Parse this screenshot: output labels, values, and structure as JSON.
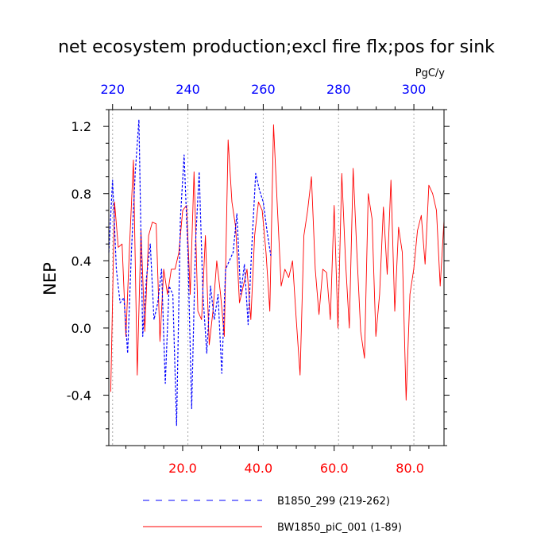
{
  "chart_data": {
    "type": "line",
    "title": "net ecosystem production;excl fire flx;pos for sink",
    "units": "PgC/y",
    "ylabel": "NEP",
    "xlabel": "",
    "ylim": [
      -0.7,
      1.3
    ],
    "bottom_axis": {
      "range": [
        0.5,
        89
      ],
      "ticks": [
        20,
        40,
        60,
        80
      ],
      "tick_labels": [
        "20.0",
        "40.0",
        "60.0",
        "80.0"
      ],
      "color": "#ff0000"
    },
    "top_axis": {
      "range": [
        219,
        308
      ],
      "ticks": [
        220,
        240,
        260,
        280,
        300
      ],
      "tick_labels": [
        "220",
        "240",
        "260",
        "280",
        "300"
      ],
      "color": "#0000ff"
    },
    "y_axis": {
      "ticks": [
        -0.4,
        0.0,
        0.4,
        0.8,
        1.2
      ],
      "tick_labels": [
        "-0.4",
        "0.0",
        "0.4",
        "0.8",
        "1.2"
      ]
    },
    "grid": "vertical dotted at top-axis ticks",
    "legend_placement": "bottom",
    "series": [
      {
        "name": "B1850_299 (219-262)",
        "axis": "top",
        "color": "#0000ff",
        "dash": "dashed",
        "x": [
          219,
          220,
          221,
          222,
          223,
          224,
          225,
          226,
          227,
          228,
          229,
          230,
          231,
          232,
          233,
          234,
          235,
          236,
          237,
          238,
          239,
          240,
          241,
          242,
          243,
          244,
          245,
          246,
          247,
          248,
          249,
          250,
          251,
          252,
          253,
          254,
          255,
          256,
          257,
          258,
          259,
          260,
          261,
          262
        ],
        "values": [
          0.45,
          0.88,
          0.35,
          0.15,
          0.18,
          -0.15,
          0.45,
          0.92,
          1.24,
          -0.05,
          0.3,
          0.5,
          0.05,
          0.15,
          0.35,
          -0.33,
          0.25,
          0.2,
          -0.58,
          0.65,
          1.03,
          0.45,
          -0.48,
          0.5,
          0.93,
          0.2,
          -0.15,
          0.25,
          0.05,
          0.2,
          -0.27,
          0.35,
          0.4,
          0.45,
          0.68,
          0.2,
          0.38,
          0.02,
          0.5,
          0.92,
          0.82,
          0.75,
          0.58,
          0.43
        ]
      },
      {
        "name": "BW1850_piC_001 (1-89)",
        "axis": "bottom",
        "color": "#ff0000",
        "dash": "solid",
        "x": [
          1,
          2,
          3,
          4,
          5,
          6,
          7,
          8,
          9,
          10,
          11,
          12,
          13,
          14,
          15,
          16,
          17,
          18,
          19,
          20,
          21,
          22,
          23,
          24,
          25,
          26,
          27,
          28,
          29,
          30,
          31,
          32,
          33,
          34,
          35,
          36,
          37,
          38,
          39,
          40,
          41,
          42,
          43,
          44,
          45,
          46,
          47,
          48,
          49,
          50,
          51,
          52,
          53,
          54,
          55,
          56,
          57,
          58,
          59,
          60,
          61,
          62,
          63,
          64,
          65,
          66,
          67,
          68,
          69,
          70,
          71,
          72,
          73,
          74,
          75,
          76,
          77,
          78,
          79,
          80,
          81,
          82,
          83,
          84,
          85,
          86,
          87,
          88,
          89
        ],
        "values": [
          -0.38,
          0.75,
          0.48,
          0.5,
          -0.05,
          0.5,
          1.0,
          -0.28,
          0.58,
          -0.02,
          0.55,
          0.63,
          0.62,
          -0.08,
          0.35,
          0.2,
          0.35,
          0.35,
          0.45,
          0.7,
          0.73,
          0.2,
          0.93,
          0.1,
          0.05,
          0.55,
          -0.1,
          0.1,
          0.4,
          0.2,
          -0.05,
          1.12,
          0.75,
          0.6,
          0.15,
          0.25,
          0.35,
          0.05,
          0.55,
          0.75,
          0.7,
          0.45,
          0.1,
          1.21,
          0.72,
          0.25,
          0.35,
          0.3,
          0.4,
          0.05,
          -0.28,
          0.55,
          0.7,
          0.9,
          0.35,
          0.08,
          0.35,
          0.33,
          0.05,
          0.73,
          0.0,
          0.92,
          0.4,
          0.0,
          0.95,
          0.45,
          -0.02,
          -0.18,
          0.8,
          0.65,
          -0.05,
          0.2,
          0.72,
          0.32,
          0.88,
          0.1,
          0.6,
          0.45,
          -0.43,
          0.2,
          0.35,
          0.58,
          0.67,
          0.38,
          0.85,
          0.8,
          0.7,
          0.25,
          0.64
        ]
      }
    ]
  }
}
